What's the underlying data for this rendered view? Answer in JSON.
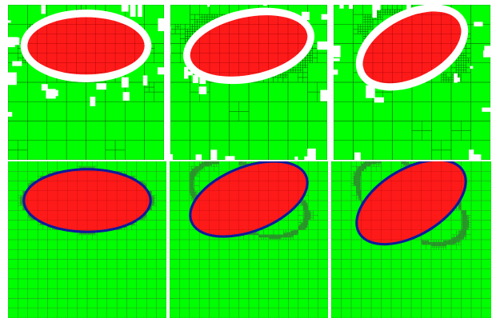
{
  "figure": {
    "rows": [
      {
        "style": "coarse",
        "panels": [
          {
            "tilt_deg": 0
          },
          {
            "tilt_deg": 12
          },
          {
            "tilt_deg": 28
          }
        ]
      },
      {
        "style": "fine",
        "panels": [
          {
            "tilt_deg": 0
          },
          {
            "tilt_deg": 22
          },
          {
            "tilt_deg": 32
          }
        ]
      }
    ]
  },
  "colors": {
    "background": "#ffffff",
    "mesh_fill": "#00ff00",
    "mesh_line_coarse": "#0a6a0a",
    "mesh_line_fine": "#2e8f2e",
    "ellipse_fill": "#ff1a1a",
    "ellipse_line": "#a00000",
    "gap": "#ffffff",
    "interface_band": "#101a9a"
  }
}
